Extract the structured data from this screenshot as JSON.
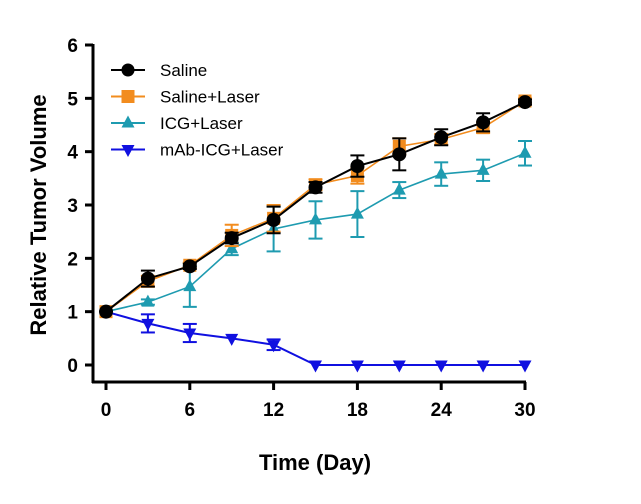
{
  "chart_data": {
    "type": "line",
    "title": "",
    "xlabel": "Time (Day)",
    "ylabel": "Relative Tumor Volume",
    "xlim": [
      0,
      30
    ],
    "ylim": [
      0,
      6
    ],
    "xticks": [
      0,
      6,
      12,
      18,
      24,
      30
    ],
    "yticks": [
      0,
      1,
      2,
      3,
      4,
      5,
      6
    ],
    "grid": false,
    "legend": "top-left",
    "x": [
      0,
      3,
      6,
      9,
      12,
      15,
      18,
      21,
      24,
      27,
      30
    ],
    "series": [
      {
        "name": "Saline",
        "color": "#000000",
        "marker": "circle",
        "values": [
          1,
          1.62,
          1.85,
          2.38,
          2.72,
          3.33,
          3.73,
          3.95,
          4.27,
          4.55,
          4.93
        ],
        "error": [
          0,
          0.15,
          0.05,
          0.1,
          0.25,
          0.1,
          0.2,
          0.3,
          0.15,
          0.17,
          0.05
        ]
      },
      {
        "name": "Saline+Laser",
        "color": "#F28C1E",
        "marker": "square",
        "values": [
          1,
          1.57,
          1.87,
          2.43,
          2.75,
          3.38,
          3.55,
          4.1,
          4.23,
          4.45,
          4.95
        ],
        "error": [
          0,
          0.1,
          0.05,
          0.2,
          0.25,
          0.1,
          0.15,
          0.15,
          0.1,
          0.1,
          0.05
        ]
      },
      {
        "name": "ICG+Laser",
        "color": "#1E9BB0",
        "marker": "triangle-up",
        "values": [
          1,
          1.18,
          1.47,
          2.18,
          2.55,
          2.72,
          2.83,
          3.28,
          3.58,
          3.65,
          3.97
        ],
        "error": [
          0,
          0.05,
          0.38,
          0.12,
          0.42,
          0.35,
          0.43,
          0.15,
          0.22,
          0.2,
          0.23
        ]
      },
      {
        "name": "mAb-ICG+Laser",
        "color": "#1010E0",
        "marker": "triangle-down",
        "values": [
          1,
          0.78,
          0.6,
          0.5,
          0.38,
          0,
          0,
          0,
          0,
          0,
          0
        ],
        "error": [
          0,
          0.17,
          0.17,
          0,
          0.1,
          0,
          0,
          0,
          0,
          0,
          0
        ]
      }
    ]
  }
}
